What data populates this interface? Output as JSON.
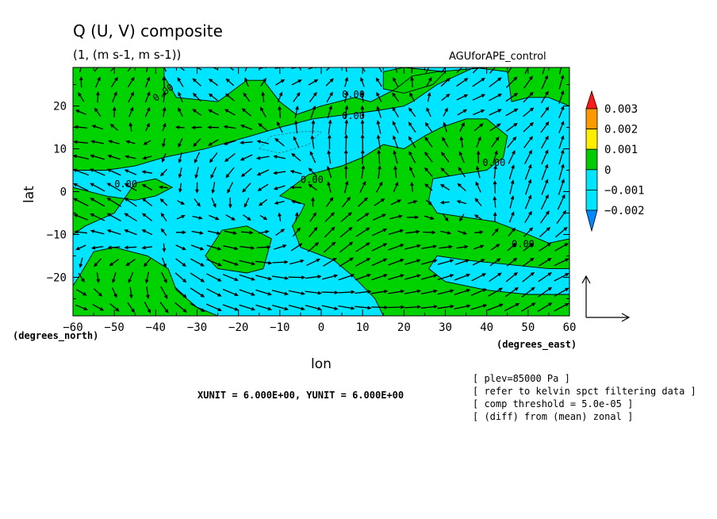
{
  "chart_data": {
    "type": "contour",
    "title": "Q (U, V) composite",
    "subtitle": "(1, (m s-1, m s-1))",
    "run_label": "AGUforAPE_control",
    "xlabel": "lon",
    "ylabel": "lat",
    "x_unit_label": "(degrees_east)",
    "y_unit_label": "(degrees_north)",
    "xlim": [
      -60,
      60
    ],
    "ylim": [
      -29,
      29
    ],
    "x_ticks": [
      -60,
      -50,
      -40,
      -30,
      -20,
      -10,
      0,
      10,
      20,
      30,
      40,
      50,
      60
    ],
    "y_ticks": [
      -20,
      -10,
      0,
      10,
      20
    ],
    "contour_label": "0.00",
    "colorbar": {
      "levels": [
        "0.003",
        "0.002",
        "0.001",
        "0",
        "−0.001",
        "−0.002"
      ],
      "colors": {
        "above": "#ff1a1a",
        "b0_003": "#ff9900",
        "b0_002": "#ffee00",
        "b0_001": "#00cc00",
        "b0": "#00e5ff",
        "bm001": "#00e5ff",
        "bm002": "#0088ff",
        "below": "#1a3cff"
      }
    },
    "vector_units": "XUNIT = 6.000E+00, YUNIT = 6.000E+00",
    "notes": [
      "[ plev=85000 Pa ]",
      "[ refer to kelvin spct filtering data ]",
      "[ comp threshold = 5.0e-05 ]",
      "[ (diff) from (mean) zonal ]"
    ],
    "fill_colors": {
      "positive": "#00d200",
      "negative": "#00e5ff"
    },
    "positive_regions": [
      {
        "name": "north-band",
        "lonlat": [
          [
            -60,
            29
          ],
          [
            -38,
            29
          ],
          [
            -38,
            27
          ],
          [
            -35,
            22
          ],
          [
            -25,
            21
          ],
          [
            -18,
            26
          ],
          [
            -14,
            26
          ],
          [
            -10,
            21
          ],
          [
            -6,
            18
          ],
          [
            0,
            20
          ],
          [
            8,
            22
          ],
          [
            12,
            21
          ],
          [
            18,
            24
          ],
          [
            22,
            27
          ],
          [
            28,
            28
          ],
          [
            40,
            29
          ],
          [
            60,
            29
          ],
          [
            60,
            20
          ],
          [
            55,
            22
          ],
          [
            50,
            22
          ],
          [
            46,
            21
          ],
          [
            45,
            28
          ],
          [
            37,
            29
          ],
          [
            28,
            25
          ],
          [
            22,
            21
          ],
          [
            20,
            20
          ],
          [
            14,
            19
          ],
          [
            6,
            18
          ],
          [
            -2,
            17
          ],
          [
            -10,
            15
          ],
          [
            -17,
            13
          ],
          [
            -28,
            10
          ],
          [
            -38,
            8
          ],
          [
            -45,
            6
          ],
          [
            -52,
            5
          ],
          [
            -60,
            5
          ]
        ]
      },
      {
        "name": "tropical-tongue",
        "lonlat": [
          [
            -10,
            -1
          ],
          [
            -3,
            4
          ],
          [
            5,
            6
          ],
          [
            10,
            8
          ],
          [
            15,
            11
          ],
          [
            20,
            10
          ],
          [
            25,
            13
          ],
          [
            29,
            15
          ],
          [
            35,
            17
          ],
          [
            40,
            17
          ],
          [
            45,
            13
          ],
          [
            44,
            8
          ],
          [
            40,
            5
          ],
          [
            33,
            4
          ],
          [
            27,
            3
          ],
          [
            26,
            -2
          ],
          [
            28,
            -5
          ],
          [
            35,
            -6
          ],
          [
            42,
            -7
          ],
          [
            50,
            -10
          ],
          [
            55,
            -12
          ],
          [
            60,
            -11
          ],
          [
            60,
            -18
          ],
          [
            55,
            -18
          ],
          [
            45,
            -17
          ],
          [
            35,
            -16
          ],
          [
            28,
            -15
          ],
          [
            26,
            -18
          ],
          [
            30,
            -21
          ],
          [
            40,
            -23
          ],
          [
            50,
            -24
          ],
          [
            60,
            -24
          ],
          [
            60,
            -29
          ],
          [
            15,
            -29
          ],
          [
            13,
            -25
          ],
          [
            8,
            -20
          ],
          [
            3,
            -16
          ],
          [
            -5,
            -13
          ],
          [
            -7,
            -8
          ],
          [
            -5,
            -5
          ],
          [
            -4,
            -3
          ]
        ]
      },
      {
        "name": "west-equatorial",
        "lonlat": [
          [
            -60,
            -10
          ],
          [
            -57,
            -8
          ],
          [
            -50,
            -5
          ],
          [
            -45,
            2
          ],
          [
            -40,
            3
          ],
          [
            -36,
            1
          ],
          [
            -40,
            -1
          ],
          [
            -45,
            -2
          ],
          [
            -52,
            -1
          ],
          [
            -60,
            1
          ]
        ]
      },
      {
        "name": "south-west",
        "lonlat": [
          [
            -60,
            -29
          ],
          [
            -60,
            -22
          ],
          [
            -58,
            -19
          ],
          [
            -55,
            -14
          ],
          [
            -50,
            -13
          ],
          [
            -42,
            -15
          ],
          [
            -37,
            -18
          ],
          [
            -35,
            -23
          ],
          [
            -30,
            -27
          ],
          [
            -25,
            -29
          ]
        ]
      },
      {
        "name": "south-mid",
        "lonlat": [
          [
            -28,
            -15
          ],
          [
            -24,
            -9
          ],
          [
            -18,
            -8
          ],
          [
            -12,
            -11
          ],
          [
            -14,
            -18
          ],
          [
            -18,
            -19
          ],
          [
            -25,
            -18
          ]
        ]
      },
      {
        "name": "north-east-patch",
        "lonlat": [
          [
            15,
            28
          ],
          [
            20,
            29
          ],
          [
            30,
            28
          ],
          [
            27,
            25
          ],
          [
            20,
            23
          ],
          [
            15,
            24
          ]
        ]
      }
    ],
    "dashed_contours": [
      {
        "name": "north-dashed",
        "lonlat": [
          [
            -15,
            10
          ],
          [
            -12,
            13
          ],
          [
            -5,
            14
          ],
          [
            0,
            14
          ],
          [
            -3,
            11
          ],
          [
            -10,
            9
          ]
        ]
      }
    ],
    "contour_label_positions": [
      {
        "lonlat": [
          -40,
          21
        ],
        "rotation": -35
      },
      {
        "lonlat": [
          5,
          22
        ],
        "rotation": 0
      },
      {
        "lonlat": [
          5,
          17
        ],
        "rotation": 0
      },
      {
        "lonlat": [
          -50,
          1
        ],
        "rotation": 0
      },
      {
        "lonlat": [
          -5,
          2
        ],
        "rotation": 0
      },
      {
        "lonlat": [
          39,
          6
        ],
        "rotation": 0
      },
      {
        "lonlat": [
          46,
          -13
        ],
        "rotation": 0
      }
    ],
    "vector_grid": {
      "lon_step": 4,
      "lat_step": 3.5,
      "lon_start": -58,
      "lat_start": -27
    },
    "reference_vector": {
      "u": 6.0,
      "v": 6.0
    }
  }
}
